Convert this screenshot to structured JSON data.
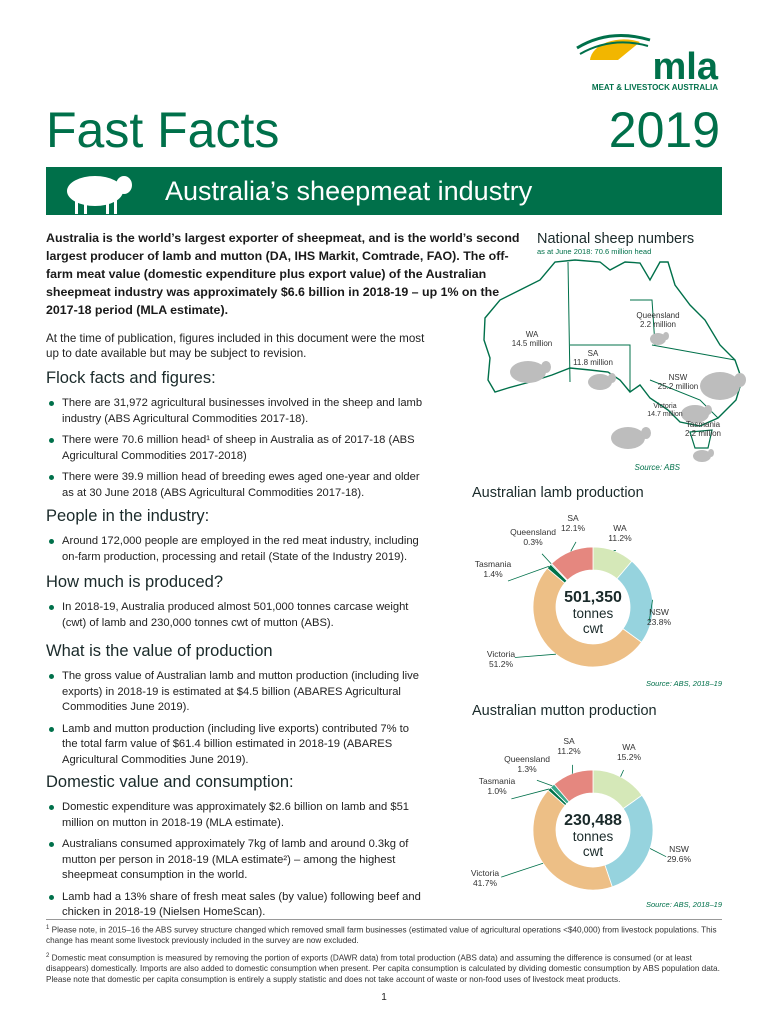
{
  "logo": {
    "name": "mla",
    "tagline": "MEAT & LIVESTOCK AUSTRALIA"
  },
  "header": {
    "title": "Fast Facts",
    "year": "2019",
    "banner": "Australia’s sheepmeat industry"
  },
  "intro": {
    "lead": "Australia is the world’s largest exporter of sheepmeat, and is the world’s second largest producer of lamb and mutton (DA, IHS Markit, Comtrade, FAO). The off-farm meat value (domestic expenditure plus export value) of the Australian sheepmeat industry was approximately $6.6 billion in 2018-19 – up 1% on the 2017-18 period (MLA estimate).",
    "note": "At the time of publication, figures included in this document were the most up to date available but may be subject to revision."
  },
  "sections": [
    {
      "heading": "Flock facts and figures:",
      "bullets": [
        "There are 31,972 agricultural businesses involved in the sheep and lamb industry (ABS Agricultural Commodities 2017-18).",
        "There were 70.6 million head¹ of sheep in Australia as of 2017-18 (ABS Agricultural Commodities 2017-2018)",
        "There were 39.9 million head of breeding ewes aged one-year and older as at 30 June 2018 (ABS Agricultural Commodities 2017-18)."
      ]
    },
    {
      "heading": "People in the industry:",
      "bullets": [
        "Around 172,000 people are employed in the red meat industry, including on-farm production, processing and retail (State of the Industry 2019)."
      ]
    },
    {
      "heading": "How much is produced?",
      "bullets": [
        "In 2018-19, Australia produced almost 501,000 tonnes carcase weight (cwt) of lamb and 230,000 tonnes cwt of mutton (ABS)."
      ]
    },
    {
      "heading": "What is the value of production",
      "bullets": [
        "The gross value of Australian lamb and mutton production (including live exports) in 2018-19 is estimated at $4.5 billion (ABARES Agricultural Commodities June 2019).",
        "Lamb and mutton production (including live exports) contributed 7% to the total farm value of $61.4 billion estimated in 2018-19 (ABARES Agricultural Commodities June 2019)."
      ]
    },
    {
      "heading": "Domestic value and consumption:",
      "bullets": [
        "Domestic expenditure was approximately $2.6 billion on lamb and $51 million on mutton in 2018-19 (MLA estimate).",
        "Australians consumed approximately 7kg of lamb and around 0.3kg of mutton per person in 2018-19 (MLA estimate²) – among the highest sheepmeat consumption in the world.",
        "Lamb had a 13% share of fresh meat sales (by value) following beef and chicken in 2018-19 (Nielsen HomeScan)."
      ]
    }
  ],
  "map": {
    "title": "National sheep numbers",
    "subtitle": "as at June 2018: 70.6 million head",
    "regions": [
      {
        "name": "WA",
        "value": "14.5 million"
      },
      {
        "name": "SA",
        "value": "11.8 million"
      },
      {
        "name": "Queensland",
        "value": "2.2 million"
      },
      {
        "name": "NSW",
        "value": "25.2 million"
      },
      {
        "name": "Victoria",
        "value": "14.7 million"
      },
      {
        "name": "Tasmania",
        "value": "2.2 million"
      }
    ],
    "source": "Source: ABS"
  },
  "chart_data": [
    {
      "type": "pie",
      "title": "Australian lamb production",
      "center_value": "501,350",
      "center_label": [
        "tonnes",
        "cwt"
      ],
      "categories": [
        "WA",
        "NSW",
        "Victoria",
        "Tasmania",
        "Queensland",
        "SA"
      ],
      "values": [
        11.2,
        23.8,
        51.2,
        1.4,
        0.3,
        12.1
      ],
      "value_labels": [
        "11.2%",
        "23.8%",
        "51.2%",
        "1.4%",
        "0.3%",
        "12.1%"
      ],
      "colors": [
        "#d5e8b8",
        "#96d3de",
        "#edbf86",
        "#00734a",
        "#3aa88a",
        "#e5877f"
      ],
      "source": "Source: ABS, 2018–19"
    },
    {
      "type": "pie",
      "title": "Australian mutton production",
      "center_value": "230,488",
      "center_label": [
        "tonnes",
        "cwt"
      ],
      "categories": [
        "WA",
        "NSW",
        "Victoria",
        "Tasmania",
        "Queensland",
        "SA"
      ],
      "values": [
        15.2,
        29.6,
        41.7,
        1.0,
        1.3,
        11.2
      ],
      "value_labels": [
        "15.2%",
        "29.6%",
        "41.7%",
        "1.0%",
        "1.3%",
        "11.2%"
      ],
      "colors": [
        "#d5e8b8",
        "#96d3de",
        "#edbf86",
        "#00734a",
        "#3aa88a",
        "#e5877f"
      ],
      "source": "Source: ABS, 2018–19"
    }
  ],
  "footnotes": [
    {
      "mark": "1",
      "text": "Please note, in 2015–16 the ABS survey structure changed which removed small farm businesses (estimated value of agricultural operations <$40,000) from livestock populations. This change has meant some livestock previously included in the survey are now excluded."
    },
    {
      "mark": "2",
      "text": "Domestic meat consumption is measured by removing the portion of exports (DAWR data) from total production (ABS data) and assuming the difference is consumed (or at least disappears) domestically. Imports are also added to domestic consumption when present. Per capita consumption is calculated by dividing domestic consumption by ABS population data. Please note that domestic per capita consumption is entirely a supply statistic and does not take account of waste or non-food uses of livestock meat products."
    }
  ],
  "page_number": "1"
}
